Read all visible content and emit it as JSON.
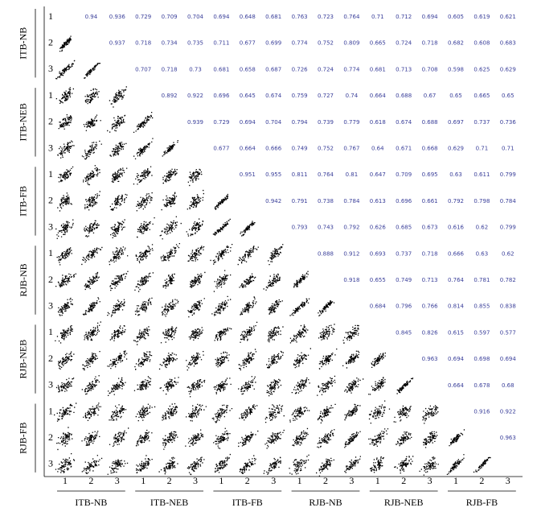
{
  "chart_data": {
    "type": "scatter_matrix",
    "groups": [
      "ITB-NB",
      "ITB-NEB",
      "ITB-FB",
      "RJB-NB",
      "RJB-NEB",
      "RJB-FB"
    ],
    "variable_labels": [
      "1",
      "2",
      "3"
    ],
    "point_color": "#000000",
    "text_color": "#3a3f9a",
    "correlations": [
      [
        0.94,
        0.936,
        0.729,
        0.709,
        0.704,
        0.694,
        0.648,
        0.681,
        0.763,
        0.723,
        0.764,
        0.71,
        0.712,
        0.694,
        0.605,
        0.619,
        0.621
      ],
      [
        0.937,
        0.718,
        0.734,
        0.735,
        0.711,
        0.677,
        0.699,
        0.774,
        0.752,
        0.809,
        0.665,
        0.724,
        0.718,
        0.682,
        0.608,
        0.683
      ],
      [
        0.707,
        0.718,
        0.73,
        0.681,
        0.658,
        0.687,
        0.726,
        0.724,
        0.774,
        0.681,
        0.713,
        0.708,
        0.598,
        0.625,
        0.629
      ],
      [
        0.892,
        0.922,
        0.696,
        0.645,
        0.674,
        0.759,
        0.727,
        0.74,
        0.664,
        0.688,
        0.67,
        0.65,
        0.665,
        0.65
      ],
      [
        0.939,
        0.729,
        0.694,
        0.704,
        0.794,
        0.739,
        0.779,
        0.618,
        0.674,
        0.688,
        0.697,
        0.737,
        0.736
      ],
      [
        0.677,
        0.664,
        0.666,
        0.749,
        0.752,
        0.767,
        0.64,
        0.671,
        0.668,
        0.629,
        0.71,
        0.71
      ],
      [
        0.951,
        0.955,
        0.811,
        0.764,
        0.81,
        0.647,
        0.709,
        0.695,
        0.63,
        0.611,
        0.799
      ],
      [
        0.942,
        0.791,
        0.738,
        0.784,
        0.613,
        0.696,
        0.661,
        0.792,
        0.798,
        0.784
      ],
      [
        0.793,
        0.743,
        0.792,
        0.626,
        0.685,
        0.673,
        0.616,
        0.62,
        0.799
      ],
      [
        0.888,
        0.912,
        0.693,
        0.737,
        0.718,
        0.666,
        0.63,
        0.62
      ],
      [
        0.918,
        0.655,
        0.749,
        0.713,
        0.764,
        0.781,
        0.782
      ],
      [
        0.684,
        0.796,
        0.766,
        0.814,
        0.855,
        0.838
      ],
      [
        0.845,
        0.826,
        0.615,
        0.597,
        0.577
      ],
      [
        0.963,
        0.694,
        0.698,
        0.694
      ],
      [
        0.664,
        0.678,
        0.68
      ],
      [
        0.916,
        0.922
      ],
      [
        0.963
      ]
    ]
  }
}
